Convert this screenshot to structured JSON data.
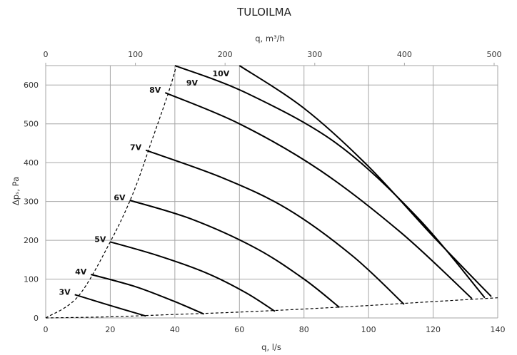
{
  "chart_data": {
    "type": "line",
    "title": "TULOILMA",
    "xlabel": "q, l/s",
    "x2label": "q, m³/h",
    "ylabel": "Δpₛ, Pa",
    "xlim": [
      0,
      140
    ],
    "x2lim": [
      0,
      504
    ],
    "ylim": [
      0,
      650
    ],
    "xticks": [
      "0",
      "20",
      "40",
      "60",
      "80",
      "100",
      "120",
      "140"
    ],
    "x2ticks": [
      "0",
      "100",
      "200",
      "300",
      "400",
      "500"
    ],
    "yticks": [
      "0",
      "100",
      "200",
      "300",
      "400",
      "500",
      "600"
    ],
    "grid": true,
    "series": [
      {
        "name": "3V",
        "x": [
          9,
          20,
          31
        ],
        "y": [
          60,
          32,
          5
        ]
      },
      {
        "name": "4V",
        "x": [
          14,
          28,
          40,
          49
        ],
        "y": [
          112,
          80,
          42,
          10
        ]
      },
      {
        "name": "5V",
        "x": [
          20,
          35,
          50,
          62,
          71
        ],
        "y": [
          196,
          160,
          115,
          65,
          17
        ]
      },
      {
        "name": "6V",
        "x": [
          26,
          45,
          65,
          80,
          91
        ],
        "y": [
          303,
          255,
          180,
          100,
          27
        ]
      },
      {
        "name": "7V",
        "x": [
          31,
          55,
          75,
          95,
          111
        ],
        "y": [
          432,
          360,
          280,
          160,
          35
        ]
      },
      {
        "name": "8V",
        "x": [
          37,
          60,
          85,
          110,
          132
        ],
        "y": [
          580,
          500,
          380,
          220,
          50
        ]
      },
      {
        "name": "9V",
        "x": [
          40,
          62,
          90,
          115,
          136
        ],
        "y": [
          650,
          580,
          450,
          260,
          52
        ]
      },
      {
        "name": "10V",
        "x": [
          60,
          80,
          100,
          120,
          138
        ],
        "y": [
          650,
          540,
          390,
          210,
          55
        ]
      }
    ],
    "limit_curves": [
      {
        "x": [
          0,
          10,
          20,
          27,
          33,
          38,
          40.5
        ],
        "y": [
          0,
          55,
          196,
          320,
          460,
          580,
          650
        ]
      },
      {
        "x": [
          0,
          20,
          40,
          60,
          80,
          100,
          120,
          140
        ],
        "y": [
          0,
          3,
          9,
          15,
          23,
          32,
          42,
          52
        ]
      }
    ]
  }
}
